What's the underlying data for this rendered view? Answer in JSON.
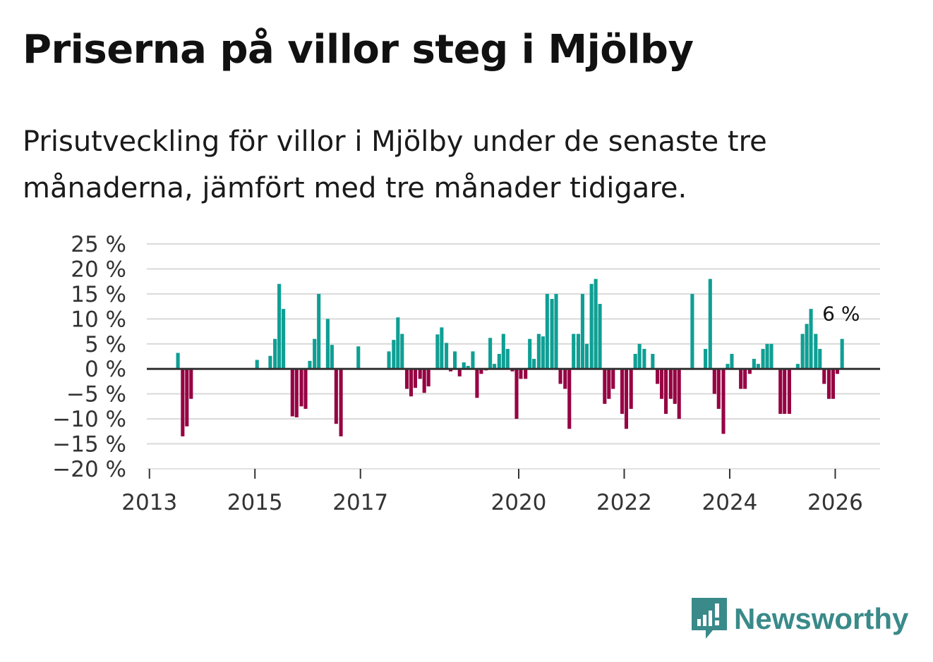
{
  "title": "Priserna på villor steg i Mjölby",
  "subtitle": "Prisutveckling för villor i Mjölby under de senaste tre månaderna, jämfört med tre månader tidigare.",
  "brand": {
    "name": "Newsworthy"
  },
  "colors": {
    "positive": "#0f9f94",
    "negative": "#960343",
    "grid": "#d9d9d9",
    "zero": "#333333",
    "brand": "#3a8a8a"
  },
  "chart_data": {
    "type": "bar",
    "title": "Priserna på villor steg i Mjölby",
    "xlabel": "",
    "ylabel": "",
    "ylim": [
      -20,
      25
    ],
    "yticks": [
      {
        "value": 25,
        "label": "25 %"
      },
      {
        "value": 20,
        "label": "20 %"
      },
      {
        "value": 15,
        "label": "15 %"
      },
      {
        "value": 10,
        "label": "10 %"
      },
      {
        "value": 5,
        "label": "5 %"
      },
      {
        "value": 0,
        "label": "0 %"
      },
      {
        "value": -5,
        "label": "−5 %"
      },
      {
        "value": -10,
        "label": "−10 %"
      },
      {
        "value": -15,
        "label": "−15 %"
      },
      {
        "value": -20,
        "label": "−20 %"
      }
    ],
    "xticks": [
      {
        "value": 2013,
        "label": "2013"
      },
      {
        "value": 2015,
        "label": "2015"
      },
      {
        "value": 2017,
        "label": "2017"
      },
      {
        "value": 2020,
        "label": "2020"
      },
      {
        "value": 2022,
        "label": "2022"
      },
      {
        "value": 2024,
        "label": "2024"
      },
      {
        "value": 2026,
        "label": "2026"
      }
    ],
    "x_range": [
      2012.95,
      2026.85
    ],
    "bars": [
      {
        "x": 2013.54,
        "value": 3.2
      },
      {
        "x": 2013.63,
        "value": -13.5
      },
      {
        "x": 2013.71,
        "value": -11.5
      },
      {
        "x": 2013.79,
        "value": -6.0
      },
      {
        "x": 2015.04,
        "value": 1.8
      },
      {
        "x": 2015.29,
        "value": 2.6
      },
      {
        "x": 2015.38,
        "value": 6.0
      },
      {
        "x": 2015.46,
        "value": 17.0
      },
      {
        "x": 2015.54,
        "value": 12.0
      },
      {
        "x": 2015.71,
        "value": -9.5
      },
      {
        "x": 2015.79,
        "value": -9.7
      },
      {
        "x": 2015.88,
        "value": -7.5
      },
      {
        "x": 2015.96,
        "value": -8.0
      },
      {
        "x": 2016.04,
        "value": 1.6
      },
      {
        "x": 2016.13,
        "value": 6.0
      },
      {
        "x": 2016.21,
        "value": 15.0
      },
      {
        "x": 2016.38,
        "value": 10.0
      },
      {
        "x": 2016.46,
        "value": 4.8
      },
      {
        "x": 2016.54,
        "value": -11.0
      },
      {
        "x": 2016.63,
        "value": -13.5
      },
      {
        "x": 2016.96,
        "value": 4.5
      },
      {
        "x": 2017.54,
        "value": 3.5
      },
      {
        "x": 2017.63,
        "value": 5.8
      },
      {
        "x": 2017.71,
        "value": 10.3
      },
      {
        "x": 2017.79,
        "value": 7.0
      },
      {
        "x": 2017.88,
        "value": -4.0
      },
      {
        "x": 2017.96,
        "value": -5.5
      },
      {
        "x": 2018.04,
        "value": -3.8
      },
      {
        "x": 2018.13,
        "value": -2.0
      },
      {
        "x": 2018.21,
        "value": -4.8
      },
      {
        "x": 2018.29,
        "value": -3.5
      },
      {
        "x": 2018.46,
        "value": 6.9
      },
      {
        "x": 2018.54,
        "value": 8.3
      },
      {
        "x": 2018.63,
        "value": 5.2
      },
      {
        "x": 2018.71,
        "value": -0.5
      },
      {
        "x": 2018.79,
        "value": 3.5
      },
      {
        "x": 2018.88,
        "value": -1.5
      },
      {
        "x": 2018.96,
        "value": 1.3
      },
      {
        "x": 2019.04,
        "value": 0.6
      },
      {
        "x": 2019.13,
        "value": 3.5
      },
      {
        "x": 2019.21,
        "value": -5.8
      },
      {
        "x": 2019.29,
        "value": -1.0
      },
      {
        "x": 2019.38,
        "value": -0.3
      },
      {
        "x": 2019.46,
        "value": 6.2
      },
      {
        "x": 2019.54,
        "value": 1.0
      },
      {
        "x": 2019.63,
        "value": 3.0
      },
      {
        "x": 2019.71,
        "value": 7.0
      },
      {
        "x": 2019.79,
        "value": 4.0
      },
      {
        "x": 2019.88,
        "value": -0.5
      },
      {
        "x": 2019.96,
        "value": -10.0
      },
      {
        "x": 2020.04,
        "value": -2.0
      },
      {
        "x": 2020.13,
        "value": -2.0
      },
      {
        "x": 2020.21,
        "value": 6.0
      },
      {
        "x": 2020.29,
        "value": 2.0
      },
      {
        "x": 2020.38,
        "value": 7.0
      },
      {
        "x": 2020.46,
        "value": 6.5
      },
      {
        "x": 2020.54,
        "value": 15.0
      },
      {
        "x": 2020.63,
        "value": 14.0
      },
      {
        "x": 2020.71,
        "value": 15.0
      },
      {
        "x": 2020.79,
        "value": -3.0
      },
      {
        "x": 2020.88,
        "value": -4.0
      },
      {
        "x": 2020.96,
        "value": -12.0
      },
      {
        "x": 2021.04,
        "value": 7.0
      },
      {
        "x": 2021.13,
        "value": 7.0
      },
      {
        "x": 2021.21,
        "value": 15.0
      },
      {
        "x": 2021.29,
        "value": 5.0
      },
      {
        "x": 2021.38,
        "value": 17.0
      },
      {
        "x": 2021.46,
        "value": 18.0
      },
      {
        "x": 2021.54,
        "value": 13.0
      },
      {
        "x": 2021.63,
        "value": -7.0
      },
      {
        "x": 2021.71,
        "value": -6.0
      },
      {
        "x": 2021.79,
        "value": -4.0
      },
      {
        "x": 2021.96,
        "value": -9.0
      },
      {
        "x": 2022.04,
        "value": -12.0
      },
      {
        "x": 2022.13,
        "value": -8.0
      },
      {
        "x": 2022.21,
        "value": 3.0
      },
      {
        "x": 2022.29,
        "value": 5.0
      },
      {
        "x": 2022.38,
        "value": 4.0
      },
      {
        "x": 2022.54,
        "value": 3.0
      },
      {
        "x": 2022.63,
        "value": -3.0
      },
      {
        "x": 2022.71,
        "value": -6.0
      },
      {
        "x": 2022.79,
        "value": -9.0
      },
      {
        "x": 2022.88,
        "value": -6.0
      },
      {
        "x": 2022.96,
        "value": -7.0
      },
      {
        "x": 2023.04,
        "value": -10.0
      },
      {
        "x": 2023.29,
        "value": 15.0
      },
      {
        "x": 2023.54,
        "value": 4.0
      },
      {
        "x": 2023.63,
        "value": 18.0
      },
      {
        "x": 2023.71,
        "value": -5.0
      },
      {
        "x": 2023.79,
        "value": -8.0
      },
      {
        "x": 2023.88,
        "value": -13.0
      },
      {
        "x": 2023.96,
        "value": 1.0
      },
      {
        "x": 2024.04,
        "value": 3.0
      },
      {
        "x": 2024.21,
        "value": -4.0
      },
      {
        "x": 2024.29,
        "value": -4.0
      },
      {
        "x": 2024.38,
        "value": -1.0
      },
      {
        "x": 2024.46,
        "value": 2.0
      },
      {
        "x": 2024.54,
        "value": 1.0
      },
      {
        "x": 2024.63,
        "value": 4.0
      },
      {
        "x": 2024.71,
        "value": 5.0
      },
      {
        "x": 2024.79,
        "value": 5.0
      },
      {
        "x": 2024.96,
        "value": -9.0
      },
      {
        "x": 2025.04,
        "value": -9.0
      },
      {
        "x": 2025.13,
        "value": -9.0
      },
      {
        "x": 2025.29,
        "value": 1.0
      },
      {
        "x": 2025.38,
        "value": 7.0
      },
      {
        "x": 2025.46,
        "value": 9.0
      },
      {
        "x": 2025.54,
        "value": 12.0
      },
      {
        "x": 2025.63,
        "value": 7.0
      },
      {
        "x": 2025.71,
        "value": 4.0
      },
      {
        "x": 2025.79,
        "value": -3.0
      },
      {
        "x": 2025.88,
        "value": -6.0
      },
      {
        "x": 2025.96,
        "value": -6.0
      },
      {
        "x": 2026.04,
        "value": -1.0
      },
      {
        "x": 2026.13,
        "value": 6.0
      }
    ],
    "annotations": [
      {
        "text": "6 %",
        "x": 2026.13,
        "value": 6.0
      }
    ]
  }
}
